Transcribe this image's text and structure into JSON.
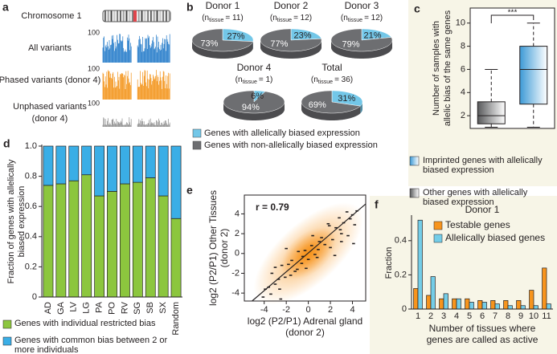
{
  "panel_a": {
    "panel_label": "a",
    "chromosome": "Chromosome 1",
    "tracks": [
      {
        "label": [
          "All variants"
        ],
        "scale": 100,
        "color": "#1f78c8"
      },
      {
        "label": [
          "Phased variants (donor 4)"
        ],
        "scale": 100,
        "color": "#f39214"
      },
      {
        "label": [
          "Unphased variants",
          "(donor 4)"
        ],
        "scale": 100,
        "color": "#8c8c8c"
      }
    ]
  },
  "chart_data": [
    {
      "type": "pie",
      "panel_label": "b",
      "labels": [
        "Genes with allelically biased expression",
        "Genes with non-allelically biased expression"
      ],
      "colors": [
        "#73c7e8",
        "#6d6e71"
      ],
      "pies": [
        {
          "title": "Donor 1",
          "subtitle": [
            "(n",
            "tissue",
            "= 11)"
          ],
          "values": [
            27,
            73
          ],
          "value_labels": [
            "27%",
            "73%"
          ]
        },
        {
          "title": "Donor 2",
          "subtitle": [
            "(n",
            "tissue",
            "= 12)"
          ],
          "values": [
            23,
            77
          ],
          "value_labels": [
            "23%",
            "77%"
          ]
        },
        {
          "title": "Donor 3",
          "subtitle": [
            "(n",
            "tissue",
            "= 12)"
          ],
          "values": [
            21,
            79
          ],
          "value_labels": [
            "21%",
            "79%"
          ]
        },
        {
          "title": "Donor 4",
          "subtitle": [
            "(n",
            "tissue",
            "= 1)"
          ],
          "values": [
            6,
            94
          ],
          "value_labels": [
            "6%",
            "94%"
          ]
        },
        {
          "title": "Total",
          "subtitle": [
            "(n",
            "tissue",
            "= 36)"
          ],
          "values": [
            31,
            69
          ],
          "value_labels": [
            "31%",
            "69%"
          ]
        }
      ]
    },
    {
      "type": "box",
      "panel_label": "c",
      "ylabel": [
        "Number of samples with",
        "allelic bias of the same genes"
      ],
      "ylim": [
        0.9,
        11.3
      ],
      "yticks": [
        2,
        4,
        6,
        8,
        10
      ],
      "annotation": "***",
      "boxes": [
        {
          "name": "Other genes with allelically biased expression",
          "color": "#58595b",
          "min": 1,
          "q1": 1.3,
          "median": 2,
          "q3": 3.2,
          "max": 6
        },
        {
          "name": "Imprinted genes with allelically biased expression",
          "color": "#3d9ad6",
          "min": 1,
          "q1": 3,
          "median": 6,
          "q3": 8,
          "max": 10
        }
      ]
    },
    {
      "type": "bar",
      "panel_label": "d",
      "stacked": true,
      "ylabel": [
        "Fraction of genes with allelically",
        "biased expression"
      ],
      "categories": [
        "AD",
        "GA",
        "LV",
        "LG",
        "PA",
        "PO",
        "RV",
        "SG",
        "SB",
        "SX",
        "Random"
      ],
      "ylim": [
        0,
        1
      ],
      "yticks": [
        0,
        0.2,
        0.4,
        0.6,
        0.8,
        {
          "value": 1,
          "label": "1.0"
        }
      ],
      "series": [
        {
          "name": "Genes with individual restricted bias",
          "color": "#8cc63e",
          "values": [
            0.74,
            0.75,
            0.77,
            0.81,
            0.67,
            0.7,
            0.75,
            0.76,
            0.79,
            0.67,
            0.52
          ]
        },
        {
          "name": "Genes with common bias between 2 or more individuals",
          "color": "#3aaee6",
          "values": [
            0.26,
            0.25,
            0.23,
            0.19,
            0.33,
            0.3,
            0.25,
            0.24,
            0.21,
            0.33,
            0.48
          ]
        }
      ]
    },
    {
      "type": "scatter",
      "panel_label": "e",
      "annotation": "r = 0.79",
      "xlabel": [
        "log2 (P2/P1) Adrenal gland",
        "(donor 2)"
      ],
      "ylabel": [
        "log2 (P2/P1) Other Tissues",
        "(donor 2)"
      ],
      "xlim": [
        -5.8,
        5.2
      ],
      "ylim": [
        -4.8,
        5.9
      ],
      "xticks": [
        -4,
        -2,
        0,
        2,
        4
      ],
      "yticks": [
        -4,
        -2,
        0,
        2,
        4
      ],
      "color": "#231f20",
      "density_color": "#f7941d",
      "x": [
        3.5,
        3.8,
        4.0,
        4.2,
        4.4,
        3.2,
        3.0,
        2.8,
        2.5,
        2.2,
        1.9,
        1.5,
        1.2,
        0.9,
        0.6,
        0.3,
        0,
        -0.3,
        -0.6,
        -0.9,
        -1.2,
        -1.5,
        -1.8,
        -2.1,
        -2.4,
        -2.7,
        -3.0,
        -3.3,
        -3.6,
        -3.9,
        -4.1,
        3.6,
        4.1,
        2.9,
        1.8,
        0.8,
        -0.5,
        -1.6,
        -2.6,
        -3.4,
        1.0,
        -1.0,
        2.0,
        -2.0,
        3.0,
        -3.0,
        0.4,
        -0.2,
        2.4,
        -2.5
      ],
      "y": [
        4.2,
        3.5,
        3.9,
        2.9,
        4.3,
        3.1,
        2.0,
        3.6,
        2.6,
        1.4,
        2.8,
        0.9,
        1.6,
        0.4,
        -0.1,
        0.8,
        -0.6,
        0.3,
        -1.0,
        0.2,
        -1.8,
        -0.7,
        -1.1,
        -2.4,
        -1.2,
        -2.6,
        -3.1,
        -2.0,
        -3.4,
        -3.6,
        -4.4,
        1.8,
        1.0,
        2.4,
        3.0,
        -0.4,
        -0.3,
        -2.2,
        -3.6,
        -4.1,
        1.2,
        -1.6,
        0.6,
        0.5,
        1.2,
        -1.4,
        1.8,
        -1.5,
        -0.2,
        -4.6
      ],
      "fit": {
        "x": [
          -5.1,
          5.2
        ],
        "y": [
          -4.8,
          5.0
        ]
      }
    },
    {
      "type": "bar",
      "panel_label": "f",
      "stacked": false,
      "title": "Donor 1",
      "ylabel": [
        "Fraction"
      ],
      "xlabel": [
        "Number of tissues where",
        "genes are called as active"
      ],
      "categories": [
        "1",
        "2",
        "3",
        "4",
        "5",
        "6",
        "7",
        "8",
        "9",
        "10",
        "11"
      ],
      "ylim": [
        0,
        0.54
      ],
      "yticks": [
        0,
        0.2,
        0.4
      ],
      "series": [
        {
          "name": "Testable genes",
          "color": "#f7941d",
          "values": [
            0.12,
            0.08,
            0.06,
            0.06,
            0.06,
            0.05,
            0.05,
            0.05,
            0.05,
            0.11,
            0.24
          ]
        },
        {
          "name": "Allelically biased genes",
          "color": "#74cde8",
          "values": [
            0.52,
            0.19,
            0.09,
            0.06,
            0.04,
            0.04,
            0.03,
            0.02,
            0.02,
            0.02,
            0.03
          ]
        }
      ]
    }
  ]
}
